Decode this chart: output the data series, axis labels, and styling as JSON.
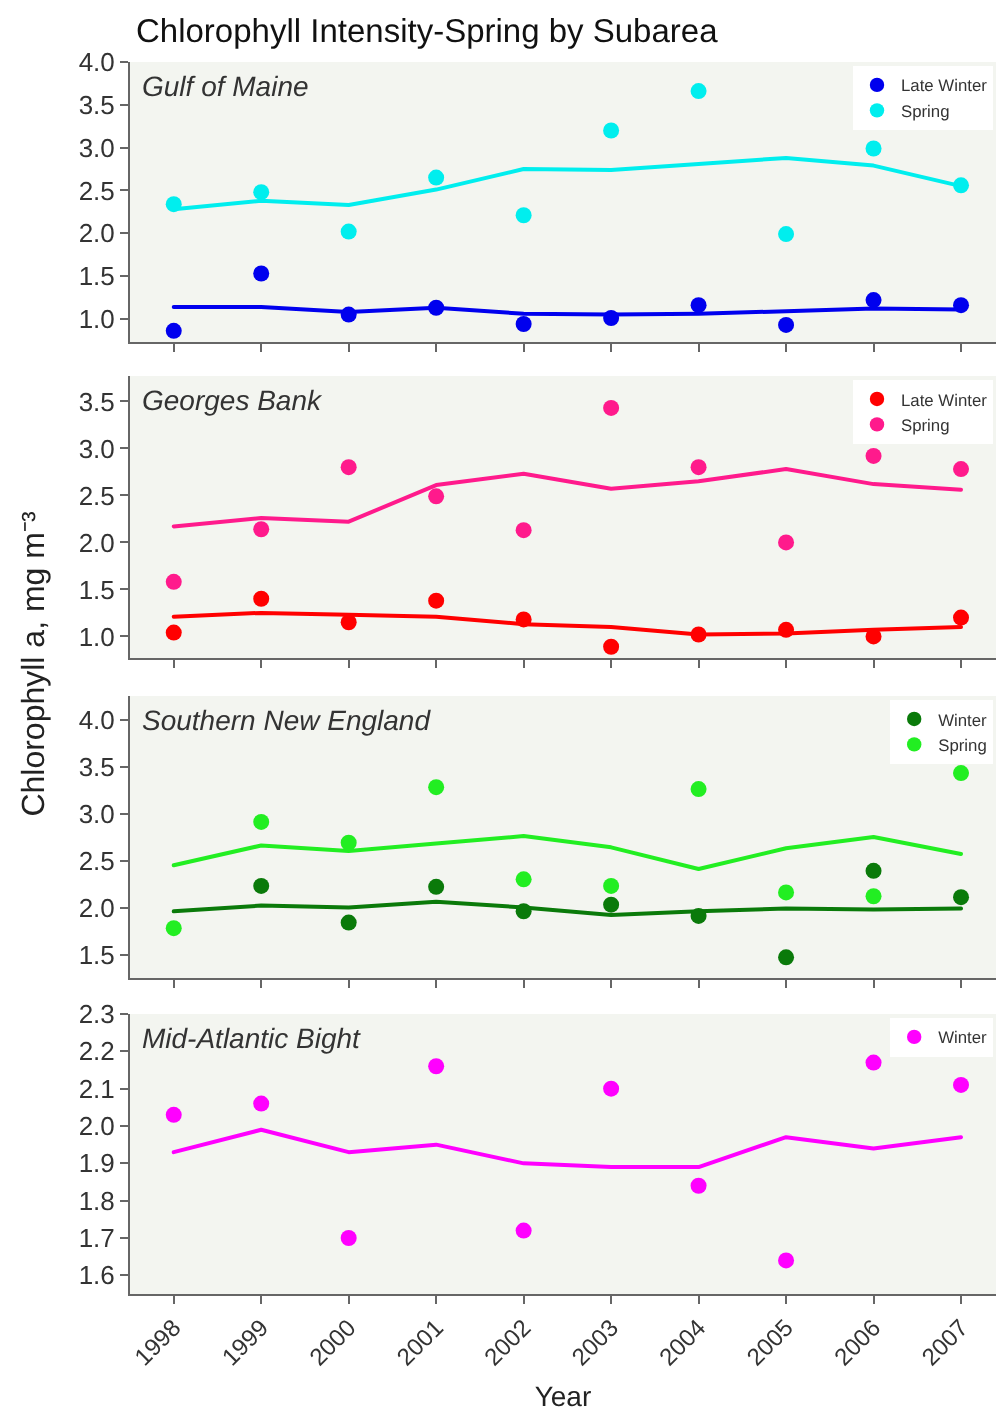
{
  "chart_data": [
    {
      "type": "scatter",
      "title": "Chlorophyll Intensity-Spring by Subarea",
      "annotations": [
        "Gulf of Maine"
      ],
      "x": [
        1998,
        1999,
        2000,
        2001,
        2002,
        2003,
        2004,
        2005,
        2006,
        2007
      ],
      "xlim": [
        1997.5,
        2007.4
      ],
      "xticks": [
        1998,
        1999,
        2000,
        2001,
        2002,
        2003,
        2004,
        2005,
        2006,
        2007
      ],
      "ylim": [
        0.73,
        4.0
      ],
      "yticks": [
        {
          "value": 1,
          "label": "1.0"
        },
        1.5,
        {
          "value": 2,
          "label": "2.0"
        },
        2.5,
        {
          "value": 3,
          "label": "3.0"
        },
        3.5,
        {
          "value": 4,
          "label": "4.0"
        }
      ],
      "tick_labels": "y",
      "grid": false,
      "legend": "top right",
      "marker": "circle",
      "line_style": "solid",
      "series": [
        {
          "type": "line",
          "marker": "none",
          "color": "#0000ee",
          "values": [
            1.14,
            1.14,
            1.08,
            1.13,
            1.06,
            1.05,
            1.06,
            1.09,
            1.12,
            1.11
          ]
        },
        {
          "type": "line",
          "marker": "none",
          "color": "#00eeee",
          "values": [
            2.28,
            2.38,
            2.33,
            2.51,
            2.75,
            2.74,
            2.81,
            2.88,
            2.79,
            2.55
          ]
        },
        {
          "name": "Late Winter",
          "color": "#0000ee",
          "values": [
            0.86,
            1.53,
            1.05,
            1.13,
            0.94,
            1.01,
            1.16,
            0.93,
            1.22,
            1.16
          ]
        },
        {
          "name": "Spring",
          "color": "#00eeee",
          "values": [
            2.34,
            2.48,
            2.02,
            2.65,
            2.21,
            3.2,
            3.66,
            1.99,
            2.99,
            2.56
          ]
        }
      ]
    },
    {
      "type": "scatter",
      "ylabel": "Chlorophyll a, mg m⁻³",
      "annotations": [
        "Georges Bank"
      ],
      "x": [
        1998,
        1999,
        2000,
        2001,
        2002,
        2003,
        2004,
        2005,
        2006,
        2007
      ],
      "xlim": [
        1997.5,
        2007.4
      ],
      "xticks": [
        1998,
        1999,
        2000,
        2001,
        2002,
        2003,
        2004,
        2005,
        2006,
        2007
      ],
      "ylim": [
        0.77,
        3.77
      ],
      "yticks": [
        {
          "value": 1,
          "label": "1.0"
        },
        1.5,
        {
          "value": 2,
          "label": "2.0"
        },
        2.5,
        {
          "value": 3,
          "label": "3.0"
        },
        3.5
      ],
      "tick_labels": "y",
      "grid": false,
      "legend": "top right",
      "marker": "circle",
      "line_style": "solid",
      "series": [
        {
          "type": "line",
          "marker": "none",
          "color": "#ff0000",
          "values": [
            1.21,
            1.25,
            1.23,
            1.21,
            1.13,
            1.1,
            1.02,
            1.03,
            1.07,
            1.1
          ]
        },
        {
          "type": "line",
          "marker": "none",
          "color": "#ff1a8c",
          "values": [
            2.17,
            2.26,
            2.22,
            2.61,
            2.73,
            2.57,
            2.65,
            2.78,
            2.62,
            2.56
          ]
        },
        {
          "name": "Late Winter",
          "color": "#ff0000",
          "values": [
            1.04,
            1.4,
            1.15,
            1.38,
            1.18,
            0.89,
            1.02,
            1.07,
            1.0,
            1.2
          ]
        },
        {
          "name": "Spring",
          "color": "#ff1a8c",
          "values": [
            1.58,
            2.14,
            2.8,
            2.49,
            2.13,
            3.43,
            2.8,
            2.0,
            2.92,
            2.78
          ]
        }
      ]
    },
    {
      "type": "scatter",
      "annotations": [
        "Southern New England"
      ],
      "x": [
        1998,
        1999,
        2000,
        2001,
        2002,
        2003,
        2004,
        2005,
        2006,
        2007
      ],
      "xlim": [
        1997.5,
        2007.4
      ],
      "xticks": [
        1998,
        1999,
        2000,
        2001,
        2002,
        2003,
        2004,
        2005,
        2006,
        2007
      ],
      "ylim": [
        1.25,
        4.25
      ],
      "yticks": [
        1.5,
        {
          "value": 2,
          "label": "2.0"
        },
        2.5,
        {
          "value": 3,
          "label": "3.0"
        },
        3.5,
        {
          "value": 4,
          "label": "4.0"
        }
      ],
      "tick_labels": "y",
      "grid": false,
      "legend": "top right",
      "marker": "circle",
      "line_style": "solid",
      "series": [
        {
          "type": "line",
          "marker": "none",
          "color": "#0a7a0a",
          "values": [
            1.96,
            2.02,
            2.0,
            2.06,
            2.0,
            1.92,
            1.96,
            1.99,
            1.98,
            1.99
          ]
        },
        {
          "type": "line",
          "marker": "none",
          "color": "#22ee22",
          "values": [
            2.45,
            2.66,
            2.6,
            2.68,
            2.76,
            2.64,
            2.41,
            2.63,
            2.75,
            2.57
          ]
        },
        {
          "name": "Winter",
          "color": "#0a7a0a",
          "values": [
            null,
            2.23,
            1.84,
            2.22,
            1.96,
            2.03,
            1.91,
            1.47,
            2.39,
            2.11
          ]
        },
        {
          "name": "Spring",
          "color": "#22ee22",
          "values": [
            1.78,
            2.91,
            2.69,
            3.28,
            2.3,
            2.23,
            3.26,
            2.16,
            2.12,
            3.43
          ]
        }
      ]
    },
    {
      "type": "scatter",
      "xlabel": "Year",
      "annotations": [
        "Mid-Atlantic Bight"
      ],
      "x": [
        1998,
        1999,
        2000,
        2001,
        2002,
        2003,
        2004,
        2005,
        2006,
        2007
      ],
      "xlim": [
        1997.5,
        2007.4
      ],
      "xticks": [
        1998,
        1999,
        2000,
        2001,
        2002,
        2003,
        2004,
        2005,
        2006,
        2007
      ],
      "ylim": [
        1.55,
        2.3
      ],
      "yticks": [
        1.6,
        1.7,
        1.8,
        1.9,
        {
          "value": 2,
          "label": "2.0"
        },
        2.1,
        2.2,
        2.3
      ],
      "grid": false,
      "legend": "top right",
      "marker": "circle",
      "line_style": "solid",
      "series": [
        {
          "type": "line",
          "marker": "none",
          "color": "#ff00ff",
          "values": [
            1.93,
            1.99,
            1.93,
            1.95,
            1.9,
            1.89,
            1.89,
            1.97,
            1.94,
            1.97
          ]
        },
        {
          "name": "Winter",
          "color": "#ff00ff",
          "values": [
            2.03,
            2.06,
            1.7,
            2.16,
            1.72,
            2.1,
            1.84,
            1.64,
            2.17,
            2.11
          ]
        }
      ]
    }
  ]
}
